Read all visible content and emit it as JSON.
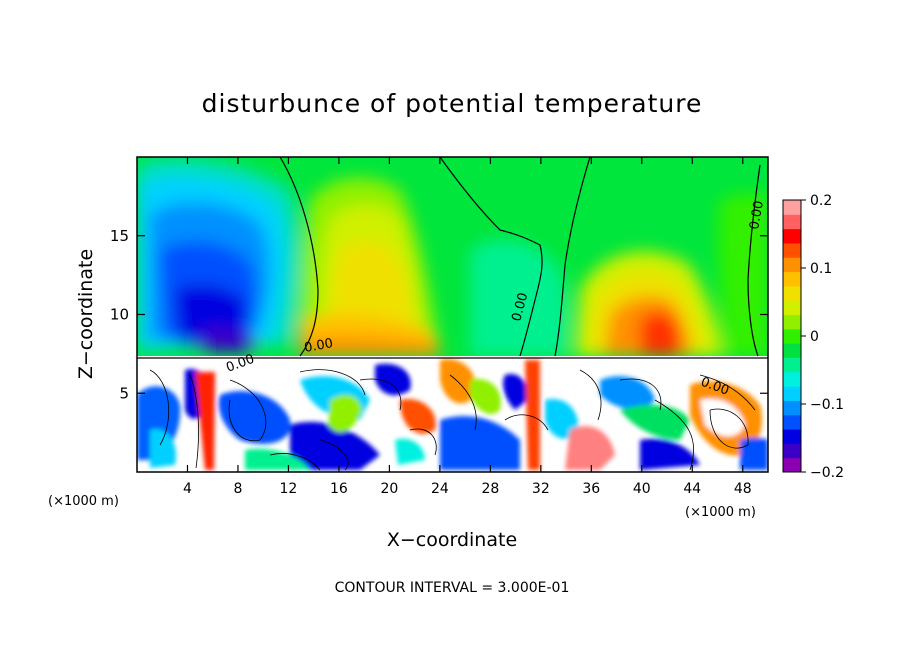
{
  "chart_data": {
    "type": "heatmap",
    "title": "disturbunce of potential temperature",
    "xlabel": "X−coordinate",
    "ylabel": "Z−coordinate",
    "x_unit_left": "(×1000 m)",
    "x_unit_right": "(×1000 m)",
    "xlim": [
      0,
      50
    ],
    "ylim": [
      0,
      20
    ],
    "xticks": [
      4,
      8,
      12,
      16,
      20,
      24,
      28,
      32,
      36,
      40,
      44,
      48
    ],
    "yticks": [
      5,
      10,
      15
    ],
    "colorbar": {
      "range": [
        -0.2,
        0.2
      ],
      "ticks": [
        0.2,
        0.1,
        0,
        -0.1,
        -0.2
      ],
      "tick_labels": [
        "0.2",
        "0.1",
        "0",
        "−0.1",
        "−0.2"
      ],
      "colors": [
        "#8b00b0",
        "#3a00c8",
        "#0000e0",
        "#0050ff",
        "#0090ff",
        "#00d0ff",
        "#00f0e0",
        "#00f090",
        "#00e040",
        "#30f000",
        "#90f000",
        "#d0f000",
        "#f0e000",
        "#ffc000",
        "#ff9000",
        "#ff5000",
        "#ff0000",
        "#ff6060",
        "#ffa0a0"
      ]
    },
    "contour_labels": [
      "0.00",
      "0.00",
      "0.00",
      "0.00",
      "0.00"
    ],
    "footer": "CONTOUR INTERVAL = 3.000E-01"
  }
}
